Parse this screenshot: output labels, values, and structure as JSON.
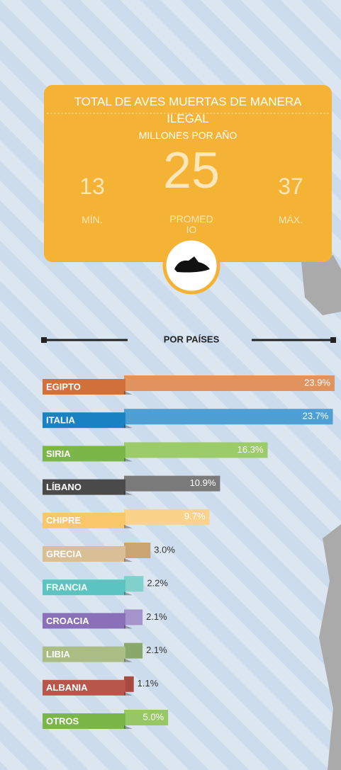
{
  "summary": {
    "title": "TOTAL DE AVES MUERTAS DE MANERA ILEGAL",
    "subtitle": "MILLONES POR AÑO",
    "min": 13,
    "min_label": "MÍN.",
    "avg": 25,
    "avg_label": "PROMEDIO",
    "max": 37,
    "max_label": "MÁX."
  },
  "chart_data": {
    "type": "bar",
    "orientation": "horizontal",
    "title": "POR PAÍSES",
    "categories": [
      "EGIPTO",
      "ITALIA",
      "SIRIA",
      "LÍBANO",
      "CHIPRE",
      "GRECIA",
      "FRANCIA",
      "CROACIA",
      "LIBIA",
      "ALBANIA",
      "OTROS"
    ],
    "values": [
      23.9,
      23.7,
      16.3,
      10.9,
      9.7,
      3.0,
      2.2,
      2.1,
      2.1,
      1.1,
      5.0
    ],
    "value_labels": [
      "23.9%",
      "23.7%",
      "16.3%",
      "10.9%",
      "9.7%",
      "3.0%",
      "2.2%",
      "2.1%",
      "2.1%",
      "1.1%",
      "5.0%"
    ],
    "label_colors": [
      "#d2703a",
      "#1a82c0",
      "#7ab648",
      "#4a4a4a",
      "#f9c66a",
      "#d9bf95",
      "#5cc4c0",
      "#8a70b8",
      "#a9bd85",
      "#b8564a",
      "#7ab648"
    ],
    "colors": [
      "#e0925f",
      "#4d9fd4",
      "#9ccc6a",
      "#7a7a7a",
      "#fbd28a",
      "#c9a574",
      "#80d0cc",
      "#a593cc",
      "#8aa86a",
      "#a84a3e",
      "#98c866"
    ]
  }
}
